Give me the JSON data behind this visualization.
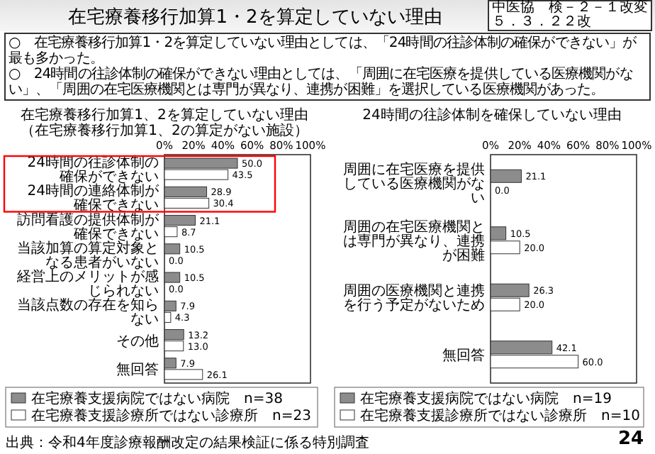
{
  "chart_data": [
    {
      "type": "other",
      "title": "在宅療養移行加算1・2を算定していない理由",
      "annotations": [
        "○　在宅療養移行加算1・2を算定していない理由としては、「24時間の往診体制の確保ができない」が最も多かった。",
        "○　24時間の往診体制の確保ができない理由としては、「周囲に在宅医療を提供している医療機関がない」、「周囲の在宅医療機関とは専門が異なり、連携が困難」を選択している医療機関があった。",
        "中医協　検－２－１改変",
        "５．３．２２改",
        "出典：令和4年度診療報酬改定の結果検証に係る特別調査",
        "24"
      ]
    },
    {
      "type": "bar",
      "orientation": "horizontal",
      "title": "在宅療養移行加算1、2を算定していない理由",
      "subtitle": "（在宅療養移行加算1、2の算定がない施設）",
      "categories": [
        "24時間の往診体制の確保ができない",
        "24時間の連絡体制が確保できない",
        "訪問看護の提供体制が確保できない",
        "当該加算の算定対象となる患者がいない",
        "経営上のメリットが感じられない",
        "当該点数の存在を知らない",
        "その他",
        "無回答"
      ],
      "series": [
        {
          "name": "在宅療養支援病院ではない病院　n=38",
          "color": "#8c8c8c",
          "values": [
            50.0,
            28.9,
            21.1,
            10.5,
            10.5,
            7.9,
            13.2,
            7.9
          ],
          "value_labels": [
            "50.0",
            "28.9",
            "21.1",
            "10.5",
            "10.5",
            "7.9",
            "13.2",
            "7.9"
          ]
        },
        {
          "name": "在宅療養支援診療所ではない診療所　n=23",
          "color": "#ffffff",
          "values": [
            43.5,
            30.4,
            8.7,
            0.0,
            0.0,
            4.3,
            13.0,
            26.1
          ],
          "value_labels": [
            "43.5",
            "30.4",
            "8.7",
            "0.0",
            "0.0",
            "4.3",
            "13.0",
            "26.1"
          ]
        }
      ],
      "xlim": [
        0,
        100
      ],
      "xticks": [
        {
          "value": 0,
          "label": "0%"
        },
        {
          "value": 20,
          "label": "20%"
        },
        {
          "value": 40,
          "label": "40%"
        },
        {
          "value": 60,
          "label": "60%"
        },
        {
          "value": 80,
          "label": "80%"
        },
        {
          "value": 100,
          "label": "100%"
        }
      ],
      "legend": "bottom",
      "grid": false
    },
    {
      "type": "bar",
      "orientation": "horizontal",
      "title": "24時間の往診体制を確保していない理由",
      "categories": [
        "周囲に在宅医療を提供している医療機関がない",
        "周囲の在宅医療機関とは専門が異なり、連携が困難",
        "周囲の医療機関と連携を行う予定がないため",
        "無回答"
      ],
      "series": [
        {
          "name": "在宅療養支援病院ではない病院　n=19",
          "color": "#8c8c8c",
          "values": [
            21.1,
            10.5,
            26.3,
            42.1
          ],
          "value_labels": [
            "21.1",
            "10.5",
            "26.3",
            "42.1"
          ]
        },
        {
          "name": "在宅療養支援診療所ではない診療所　n=10",
          "color": "#ffffff",
          "values": [
            0.0,
            20.0,
            20.0,
            60.0
          ],
          "value_labels": [
            "0.0",
            "20.0",
            "20.0",
            "60.0"
          ]
        }
      ],
      "xlim": [
        0,
        100
      ],
      "xticks": [
        {
          "value": 0,
          "label": "0%"
        },
        {
          "value": 20,
          "label": "20%"
        },
        {
          "value": 40,
          "label": "40%"
        },
        {
          "value": 60,
          "label": "60%"
        },
        {
          "value": 80,
          "label": "80%"
        },
        {
          "value": 100,
          "label": "100%"
        }
      ],
      "legend": "bottom",
      "grid": false
    }
  ]
}
